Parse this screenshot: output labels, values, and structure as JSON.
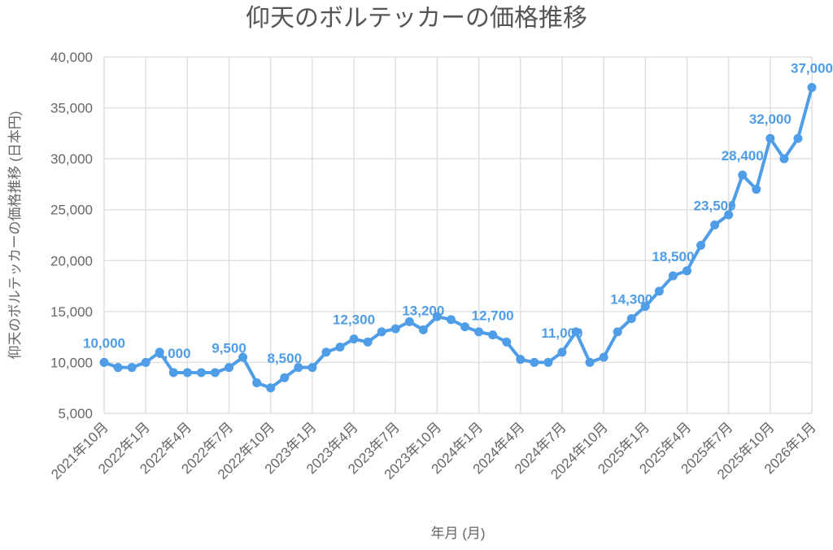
{
  "chart_data": {
    "type": "line",
    "title": "仰天のボルテッカーの価格推移",
    "xlabel": "年月 (月)",
    "ylabel": "仰天のボルテッカーの価格推移 (日本円)",
    "ylim": [
      5000,
      40000
    ],
    "yticks": [
      5000,
      10000,
      15000,
      20000,
      25000,
      30000,
      35000,
      40000
    ],
    "ytick_labels": [
      "5,000",
      "10,000",
      "15,000",
      "20,000",
      "25,000",
      "30,000",
      "35,000",
      "40,000"
    ],
    "grid": true,
    "color": "#4f9de6",
    "x_tick_labels": [
      "2021年10月",
      "2022年1月",
      "2022年4月",
      "2022年7月",
      "2022年10月",
      "2023年1月",
      "2023年4月",
      "2023年7月",
      "2023年10月",
      "2024年1月",
      "2024年4月",
      "2024年7月",
      "2024年10月",
      "2025年1月",
      "2025年4月",
      "2025年7月",
      "2025年10月",
      "2026年1月"
    ],
    "x_tick_every": 3,
    "series": [
      {
        "name": "仰天のボルテッカー",
        "values": [
          10000,
          9500,
          9500,
          10000,
          11000,
          9000,
          9000,
          9000,
          9000,
          9500,
          10500,
          8000,
          7500,
          8500,
          9500,
          9500,
          11000,
          11500,
          12300,
          12000,
          13000,
          13300,
          14000,
          13200,
          14500,
          14200,
          13500,
          13000,
          12700,
          12000,
          10300,
          10000,
          10000,
          11000,
          13000,
          10000,
          10500,
          13000,
          14300,
          15500,
          17000,
          18500,
          19000,
          21500,
          23500,
          24500,
          28400,
          27000,
          32000,
          30000,
          32000,
          37000
        ]
      }
    ],
    "data_labels": [
      {
        "index": 0,
        "text": "10,000"
      },
      {
        "index": 5,
        "text": "9,000"
      },
      {
        "index": 9,
        "text": "9,500"
      },
      {
        "index": 13,
        "text": "8,500"
      },
      {
        "index": 18,
        "text": "12,300"
      },
      {
        "index": 23,
        "text": "13,200"
      },
      {
        "index": 28,
        "text": "12,700"
      },
      {
        "index": 33,
        "text": "11,000"
      },
      {
        "index": 38,
        "text": "14,300"
      },
      {
        "index": 41,
        "text": "18,500"
      },
      {
        "index": 44,
        "text": "23,500"
      },
      {
        "index": 46,
        "text": "28,400"
      },
      {
        "index": 48,
        "text": "32,000"
      },
      {
        "index": 51,
        "text": "37,000"
      }
    ]
  }
}
